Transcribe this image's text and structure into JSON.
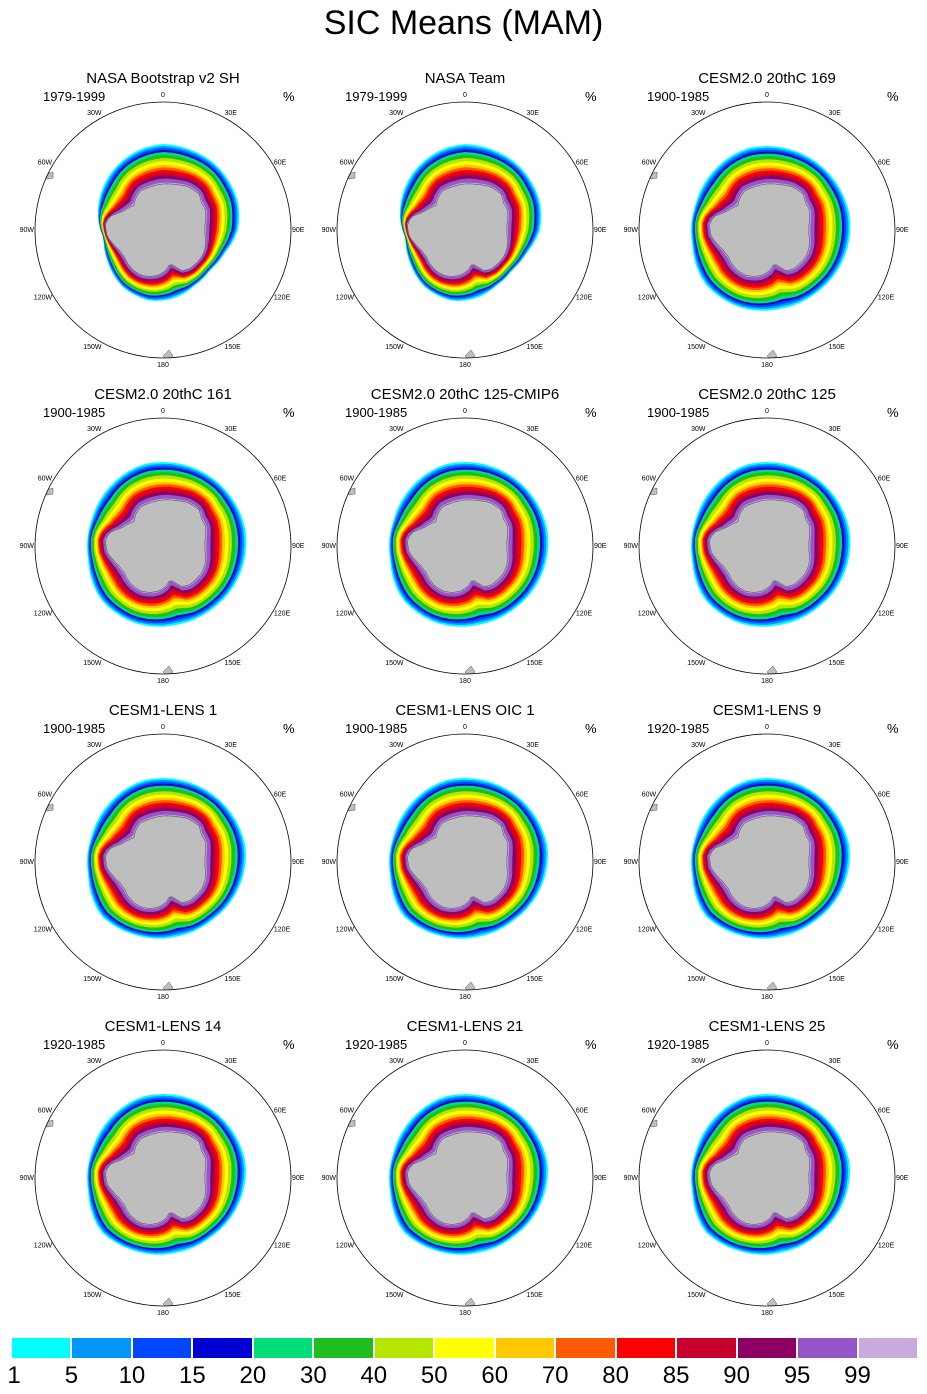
{
  "title": "SIC Means (MAM)",
  "unit": "%",
  "lon_labels": [
    "0",
    "30E",
    "60E",
    "90E",
    "120E",
    "150E",
    "180",
    "150W",
    "120W",
    "90W",
    "60W",
    "30W"
  ],
  "panels": [
    {
      "title": "NASA Bootstrap v2 SH",
      "period": "1979-1999",
      "style": "obs1"
    },
    {
      "title": "NASA Team",
      "period": "1979-1999",
      "style": "obs2"
    },
    {
      "title": "CESM2.0 20thC 169",
      "period": "1900-1985",
      "style": "cesm2"
    },
    {
      "title": "CESM2.0 20thC 161",
      "period": "1900-1985",
      "style": "cesm2"
    },
    {
      "title": "CESM2.0 20thC 125-CMIP6",
      "period": "1900-1985",
      "style": "cesm2"
    },
    {
      "title": "CESM2.0 20thC 125",
      "period": "1900-1985",
      "style": "cesm2"
    },
    {
      "title": "CESM1-LENS 1",
      "period": "1900-1985",
      "style": "lens"
    },
    {
      "title": "CESM1-LENS OIC 1",
      "period": "1900-1985",
      "style": "lens"
    },
    {
      "title": "CESM1-LENS 9",
      "period": "1920-1985",
      "style": "lens"
    },
    {
      "title": "CESM1-LENS 14",
      "period": "1920-1985",
      "style": "lens"
    },
    {
      "title": "CESM1-LENS 21",
      "period": "1920-1985",
      "style": "lens"
    },
    {
      "title": "CESM1-LENS 25",
      "period": "1920-1985",
      "style": "lens"
    }
  ],
  "colorbar": {
    "labels": [
      "1",
      "5",
      "10",
      "15",
      "20",
      "30",
      "40",
      "50",
      "60",
      "70",
      "80",
      "85",
      "90",
      "95",
      "99"
    ],
    "colors": [
      "#00ffff",
      "#0096ff",
      "#0046ff",
      "#0000d2",
      "#00dc78",
      "#1ebe1e",
      "#b4e600",
      "#ffff00",
      "#ffc800",
      "#ff5a00",
      "#ff0000",
      "#c8002d",
      "#8c0064",
      "#9655c8",
      "#c8aadc"
    ]
  },
  "chart_data": {
    "type": "heatmap",
    "title": "SIC Means (MAM)",
    "projection": "south polar stereographic",
    "variable": "Sea ice concentration",
    "unit": "%",
    "contour_levels": [
      1,
      5,
      10,
      15,
      20,
      30,
      40,
      50,
      60,
      70,
      80,
      85,
      90,
      95,
      99
    ],
    "lon_labels": [
      "0",
      "30E",
      "60E",
      "90E",
      "120E",
      "150E",
      "180",
      "150W",
      "120W",
      "90W",
      "60W",
      "30W"
    ],
    "panels": [
      "NASA Bootstrap v2 SH",
      "NASA Team",
      "CESM2.0 20thC 169",
      "CESM2.0 20thC 161",
      "CESM2.0 20thC 125-CMIP6",
      "CESM2.0 20thC 125",
      "CESM1-LENS 1",
      "CESM1-LENS OIC 1",
      "CESM1-LENS 9",
      "CESM1-LENS 14",
      "CESM1-LENS 21",
      "CESM1-LENS 25"
    ]
  }
}
